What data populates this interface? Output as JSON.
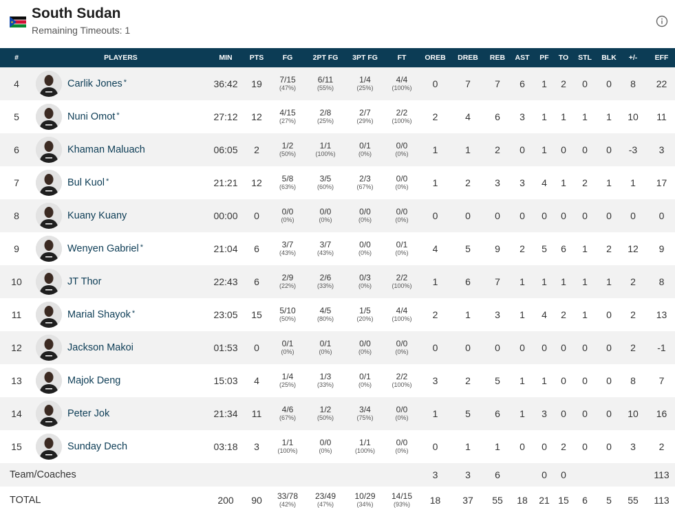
{
  "team": {
    "name": "South Sudan",
    "timeouts": "Remaining Timeouts: 1",
    "flag_colors": [
      "#0b0b0b",
      "#ffffff",
      "#d21034",
      "#078930",
      "#0f47af",
      "#fcdd09"
    ]
  },
  "columns": [
    "#",
    "PLAYERS",
    "MIN",
    "PTS",
    "FG",
    "2PT FG",
    "3PT FG",
    "FT",
    "OREB",
    "DREB",
    "REB",
    "AST",
    "PF",
    "TO",
    "STL",
    "BLK",
    "+/-",
    "EFF"
  ],
  "players": [
    {
      "num": "4",
      "name": "Carlik Jones",
      "star": "*",
      "min": "36:42",
      "pts": "19",
      "fg": "7/15",
      "fg_pct": "(47%)",
      "fg2": "6/11",
      "fg2_pct": "(55%)",
      "fg3": "1/4",
      "fg3_pct": "(25%)",
      "ft": "4/4",
      "ft_pct": "(100%)",
      "oreb": "0",
      "dreb": "7",
      "reb": "7",
      "ast": "6",
      "pf": "1",
      "to": "2",
      "stl": "0",
      "blk": "0",
      "pm": "8",
      "eff": "22"
    },
    {
      "num": "5",
      "name": "Nuni Omot",
      "star": "*",
      "min": "27:12",
      "pts": "12",
      "fg": "4/15",
      "fg_pct": "(27%)",
      "fg2": "2/8",
      "fg2_pct": "(25%)",
      "fg3": "2/7",
      "fg3_pct": "(29%)",
      "ft": "2/2",
      "ft_pct": "(100%)",
      "oreb": "2",
      "dreb": "4",
      "reb": "6",
      "ast": "3",
      "pf": "1",
      "to": "1",
      "stl": "1",
      "blk": "1",
      "pm": "10",
      "eff": "11"
    },
    {
      "num": "6",
      "name": "Khaman Maluach",
      "star": "",
      "min": "06:05",
      "pts": "2",
      "fg": "1/2",
      "fg_pct": "(50%)",
      "fg2": "1/1",
      "fg2_pct": "(100%)",
      "fg3": "0/1",
      "fg3_pct": "(0%)",
      "ft": "0/0",
      "ft_pct": "(0%)",
      "oreb": "1",
      "dreb": "1",
      "reb": "2",
      "ast": "0",
      "pf": "1",
      "to": "0",
      "stl": "0",
      "blk": "0",
      "pm": "-3",
      "eff": "3"
    },
    {
      "num": "7",
      "name": "Bul Kuol",
      "star": "*",
      "min": "21:21",
      "pts": "12",
      "fg": "5/8",
      "fg_pct": "(63%)",
      "fg2": "3/5",
      "fg2_pct": "(60%)",
      "fg3": "2/3",
      "fg3_pct": "(67%)",
      "ft": "0/0",
      "ft_pct": "(0%)",
      "oreb": "1",
      "dreb": "2",
      "reb": "3",
      "ast": "3",
      "pf": "4",
      "to": "1",
      "stl": "2",
      "blk": "1",
      "pm": "1",
      "eff": "17"
    },
    {
      "num": "8",
      "name": "Kuany Kuany",
      "star": "",
      "min": "00:00",
      "pts": "0",
      "fg": "0/0",
      "fg_pct": "(0%)",
      "fg2": "0/0",
      "fg2_pct": "(0%)",
      "fg3": "0/0",
      "fg3_pct": "(0%)",
      "ft": "0/0",
      "ft_pct": "(0%)",
      "oreb": "0",
      "dreb": "0",
      "reb": "0",
      "ast": "0",
      "pf": "0",
      "to": "0",
      "stl": "0",
      "blk": "0",
      "pm": "0",
      "eff": "0"
    },
    {
      "num": "9",
      "name": "Wenyen Gabriel",
      "star": "*",
      "min": "21:04",
      "pts": "6",
      "fg": "3/7",
      "fg_pct": "(43%)",
      "fg2": "3/7",
      "fg2_pct": "(43%)",
      "fg3": "0/0",
      "fg3_pct": "(0%)",
      "ft": "0/1",
      "ft_pct": "(0%)",
      "oreb": "4",
      "dreb": "5",
      "reb": "9",
      "ast": "2",
      "pf": "5",
      "to": "6",
      "stl": "1",
      "blk": "2",
      "pm": "12",
      "eff": "9"
    },
    {
      "num": "10",
      "name": "JT Thor",
      "star": "",
      "min": "22:43",
      "pts": "6",
      "fg": "2/9",
      "fg_pct": "(22%)",
      "fg2": "2/6",
      "fg2_pct": "(33%)",
      "fg3": "0/3",
      "fg3_pct": "(0%)",
      "ft": "2/2",
      "ft_pct": "(100%)",
      "oreb": "1",
      "dreb": "6",
      "reb": "7",
      "ast": "1",
      "pf": "1",
      "to": "1",
      "stl": "1",
      "blk": "1",
      "pm": "2",
      "eff": "8"
    },
    {
      "num": "11",
      "name": "Marial Shayok",
      "star": "*",
      "min": "23:05",
      "pts": "15",
      "fg": "5/10",
      "fg_pct": "(50%)",
      "fg2": "4/5",
      "fg2_pct": "(80%)",
      "fg3": "1/5",
      "fg3_pct": "(20%)",
      "ft": "4/4",
      "ft_pct": "(100%)",
      "oreb": "2",
      "dreb": "1",
      "reb": "3",
      "ast": "1",
      "pf": "4",
      "to": "2",
      "stl": "1",
      "blk": "0",
      "pm": "2",
      "eff": "13"
    },
    {
      "num": "12",
      "name": "Jackson Makoi",
      "star": "",
      "min": "01:53",
      "pts": "0",
      "fg": "0/1",
      "fg_pct": "(0%)",
      "fg2": "0/1",
      "fg2_pct": "(0%)",
      "fg3": "0/0",
      "fg3_pct": "(0%)",
      "ft": "0/0",
      "ft_pct": "(0%)",
      "oreb": "0",
      "dreb": "0",
      "reb": "0",
      "ast": "0",
      "pf": "0",
      "to": "0",
      "stl": "0",
      "blk": "0",
      "pm": "2",
      "eff": "-1"
    },
    {
      "num": "13",
      "name": "Majok Deng",
      "star": "",
      "min": "15:03",
      "pts": "4",
      "fg": "1/4",
      "fg_pct": "(25%)",
      "fg2": "1/3",
      "fg2_pct": "(33%)",
      "fg3": "0/1",
      "fg3_pct": "(0%)",
      "ft": "2/2",
      "ft_pct": "(100%)",
      "oreb": "3",
      "dreb": "2",
      "reb": "5",
      "ast": "1",
      "pf": "1",
      "to": "0",
      "stl": "0",
      "blk": "0",
      "pm": "8",
      "eff": "7"
    },
    {
      "num": "14",
      "name": "Peter Jok",
      "star": "",
      "min": "21:34",
      "pts": "11",
      "fg": "4/6",
      "fg_pct": "(67%)",
      "fg2": "1/2",
      "fg2_pct": "(50%)",
      "fg3": "3/4",
      "fg3_pct": "(75%)",
      "ft": "0/0",
      "ft_pct": "(0%)",
      "oreb": "1",
      "dreb": "5",
      "reb": "6",
      "ast": "1",
      "pf": "3",
      "to": "0",
      "stl": "0",
      "blk": "0",
      "pm": "10",
      "eff": "16"
    },
    {
      "num": "15",
      "name": "Sunday Dech",
      "star": "",
      "min": "03:18",
      "pts": "3",
      "fg": "1/1",
      "fg_pct": "(100%)",
      "fg2": "0/0",
      "fg2_pct": "(0%)",
      "fg3": "1/1",
      "fg3_pct": "(100%)",
      "ft": "0/0",
      "ft_pct": "(0%)",
      "oreb": "0",
      "dreb": "1",
      "reb": "1",
      "ast": "0",
      "pf": "0",
      "to": "2",
      "stl": "0",
      "blk": "0",
      "pm": "3",
      "eff": "2"
    }
  ],
  "team_row": {
    "label": "Team/Coaches",
    "oreb": "3",
    "dreb": "3",
    "reb": "6",
    "pf": "0",
    "to": "0",
    "eff": "113"
  },
  "total_row": {
    "label": "TOTAL",
    "min": "200",
    "pts": "90",
    "fg": "33/78",
    "fg_pct": "(42%)",
    "fg2": "23/49",
    "fg2_pct": "(47%)",
    "fg3": "10/29",
    "fg3_pct": "(34%)",
    "ft": "14/15",
    "ft_pct": "(93%)",
    "oreb": "18",
    "dreb": "37",
    "reb": "55",
    "ast": "18",
    "pf": "21",
    "to": "15",
    "stl": "6",
    "blk": "5",
    "pm": "55",
    "eff": "113"
  }
}
